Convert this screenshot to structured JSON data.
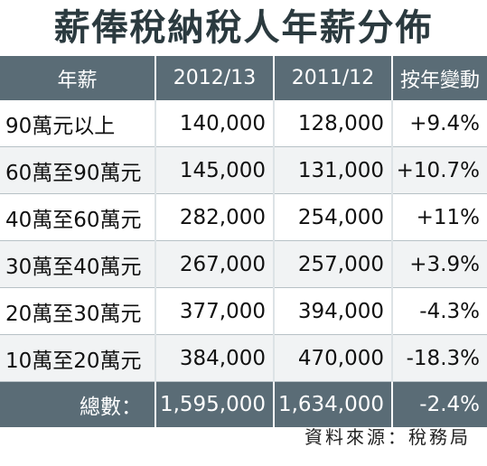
{
  "title": "薪俸稅納稅人年薪分佈",
  "headers": [
    "年薪",
    "2012/13",
    "2011/12",
    "按年變動"
  ],
  "rows": [
    [
      "90萬元以上",
      "140,000",
      "128,000",
      "+9.4%"
    ],
    [
      "60萬至90萬元",
      "145,000",
      "131,000",
      "+10.7%"
    ],
    [
      "40萬至60萬元",
      "282,000",
      "254,000",
      "+11%"
    ],
    [
      "30萬至40萬元",
      "267,000",
      "257,000",
      "+3.9%"
    ],
    [
      "20萬至30萬元",
      "377,000",
      "394,000",
      "-4.3%"
    ],
    [
      "10萬至20萬元",
      "384,000",
      "470,000",
      "-18.3%"
    ]
  ],
  "total": [
    "總數：",
    "1,595,000",
    "1,634,000",
    "-2.4%"
  ],
  "source": "資料來源：稅務局",
  "colors": {
    "header_bg": "#5a6c76",
    "title": "#2b3a3f",
    "alt_row": "#f1f3f4"
  }
}
